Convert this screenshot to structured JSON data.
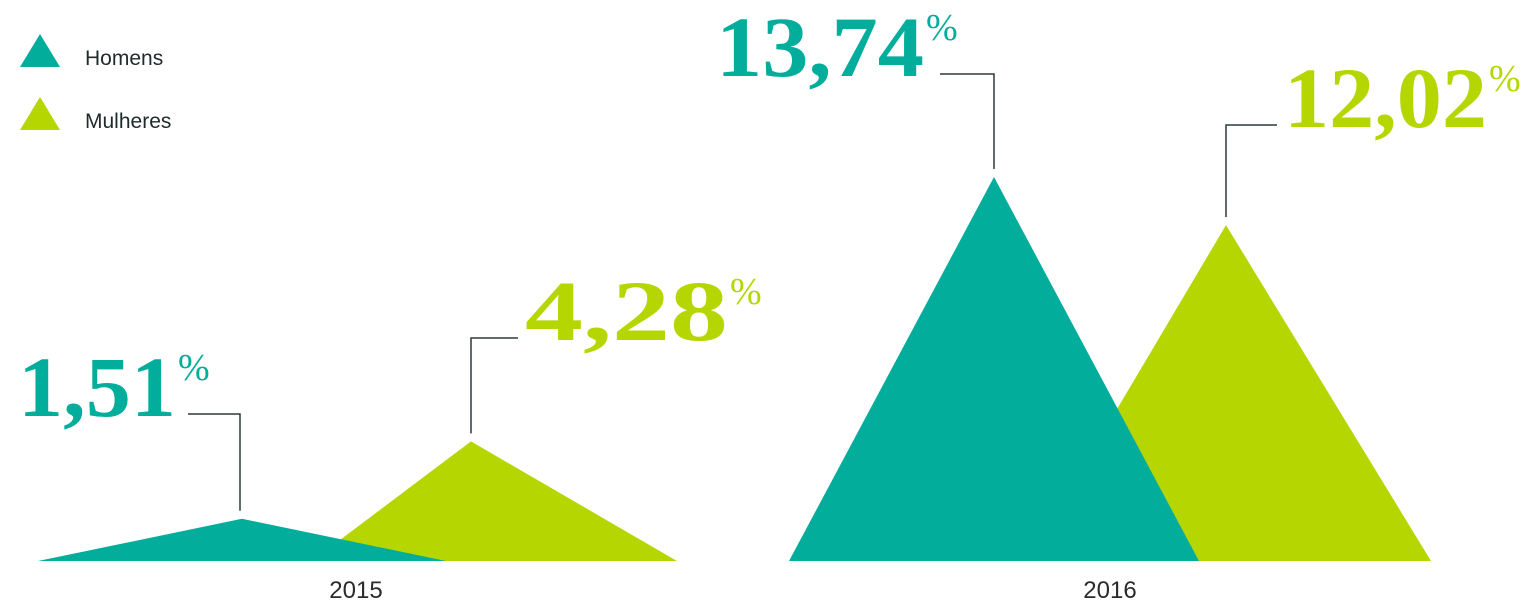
{
  "colors": {
    "Homens": "#03ad9b",
    "Mulheres": "#b5d600"
  },
  "chart_data": {
    "type": "area",
    "shape": "triangle-peaks",
    "decimal_separator": ",",
    "unit": "%",
    "categories": [
      "2015",
      "2016"
    ],
    "legend_position": "top-left",
    "grid": false,
    "ylim": [
      0,
      13.74
    ],
    "series": [
      {
        "name": "Homens",
        "values": [
          1.51,
          13.74
        ]
      },
      {
        "name": "Mulheres",
        "values": [
          4.28,
          12.02
        ]
      }
    ]
  }
}
